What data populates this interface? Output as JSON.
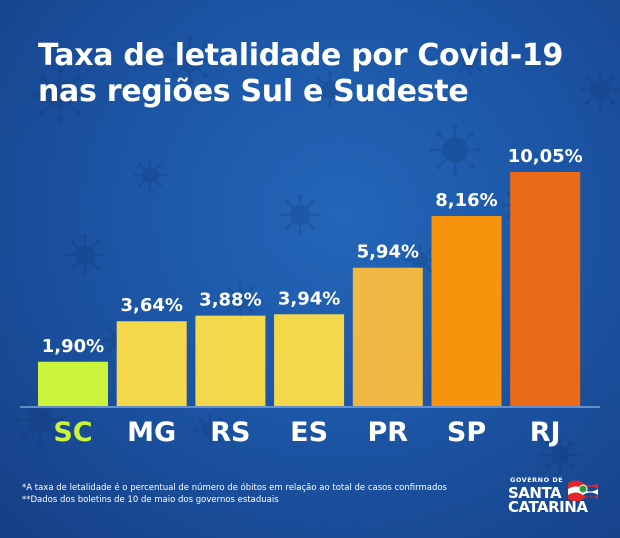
{
  "title": {
    "line1": "Taxa de letalidade por Covid-19",
    "line2": "nas regiões Sul e Sudeste"
  },
  "chart_data": {
    "type": "bar",
    "categories": [
      "SC",
      "MG",
      "RS",
      "ES",
      "PR",
      "SP",
      "RJ"
    ],
    "values": [
      1.9,
      3.64,
      3.88,
      3.94,
      5.94,
      8.16,
      10.05
    ],
    "value_labels": [
      "1,90%",
      "3,64%",
      "3,88%",
      "3,94%",
      "5,94%",
      "8,16%",
      "10,05%"
    ],
    "colors": [
      "#ccf33b",
      "#f4d84c",
      "#f4d84c",
      "#f4d84c",
      "#f0b843",
      "#f7930c",
      "#ea6a18"
    ],
    "category_label_colors": [
      "#ccf33b",
      "#ffffff",
      "#ffffff",
      "#ffffff",
      "#ffffff",
      "#ffffff",
      "#ffffff"
    ],
    "title": "Taxa de letalidade por Covid-19 nas regiões Sul e Sudeste",
    "xlabel": "",
    "ylabel": "",
    "ylim": [
      0,
      10.05
    ],
    "grid": false
  },
  "footnotes": {
    "note1": "*A taxa de letalidade é o percentual de número de óbitos em relação ao total de casos confirmados",
    "note2": "**Dados dos boletins de 10 de maio dos governos estaduais"
  },
  "logo": {
    "top": "GOVERNO DE",
    "line1": "SANTA",
    "line2": "CATARINA"
  }
}
